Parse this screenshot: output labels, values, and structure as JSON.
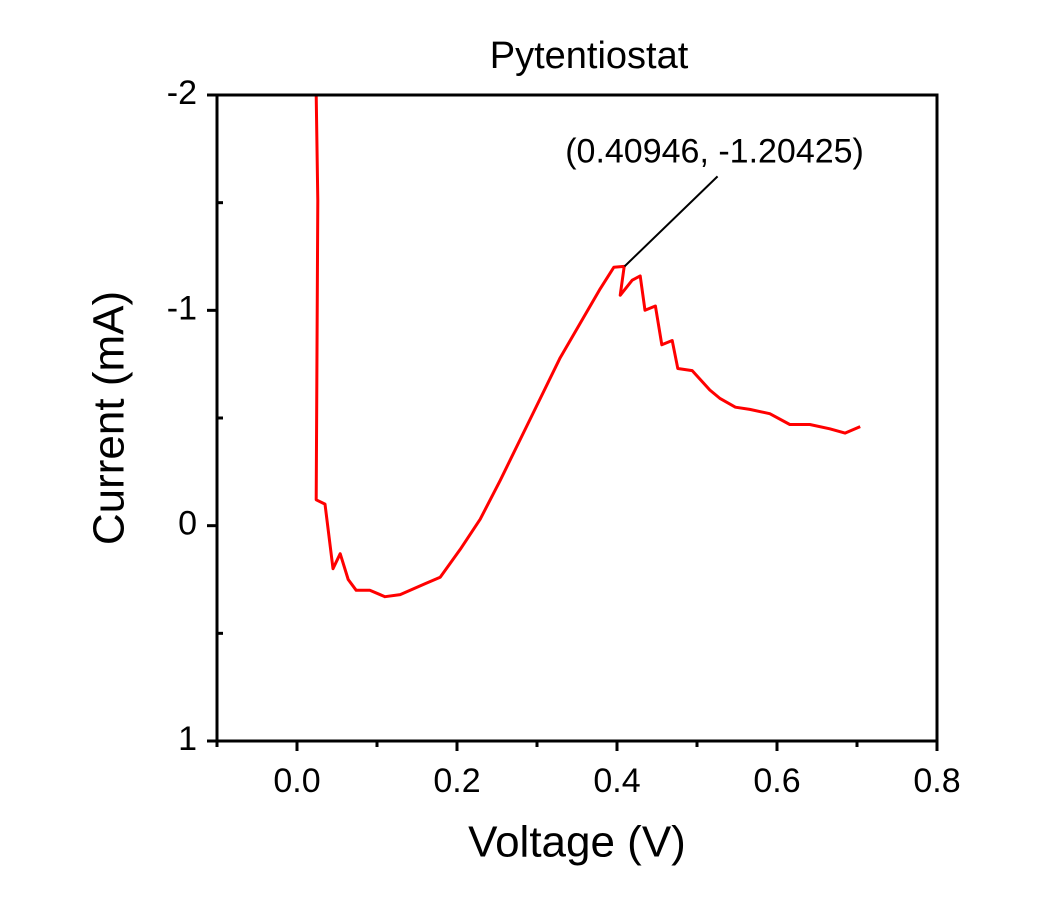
{
  "chart_data": {
    "type": "line",
    "title": "Pytentiostat",
    "x_label": "Voltage (V)",
    "y_label": "Current (mA)",
    "xlim": [
      -0.1,
      0.8
    ],
    "ylim": [
      -2,
      1
    ],
    "y_reversed": true,
    "xticks": [
      {
        "value": 0,
        "label": "0.0"
      },
      0.2,
      0.4,
      0.6,
      0.8
    ],
    "yticks": [
      -2,
      -1,
      0,
      1
    ],
    "xticks_minor": [
      -0.1,
      0.1,
      0.3,
      0.5,
      0.7
    ],
    "yticks_minor": [
      -1.5,
      -0.5,
      0.5
    ],
    "series": [
      {
        "name": "Current",
        "color": "#ff0000",
        "x": [
          0.024,
          0.026,
          0.024,
          0.035,
          0.045,
          0.054,
          0.064,
          0.074,
          0.091,
          0.11,
          0.129,
          0.16,
          0.179,
          0.204,
          0.229,
          0.254,
          0.279,
          0.304,
          0.329,
          0.354,
          0.379,
          0.396,
          0.409,
          0.404,
          0.419,
          0.429,
          0.435,
          0.448,
          0.456,
          0.469,
          0.476,
          0.494,
          0.516,
          0.529,
          0.548,
          0.566,
          0.591,
          0.616,
          0.641,
          0.666,
          0.685,
          0.704
        ],
        "values": [
          -2.0,
          -1.51,
          -0.12,
          -0.1,
          0.2,
          0.13,
          0.25,
          0.3,
          0.3,
          0.33,
          0.32,
          0.27,
          0.24,
          0.11,
          -0.03,
          -0.21,
          -0.4,
          -0.59,
          -0.78,
          -0.94,
          -1.1,
          -1.2,
          -1.204,
          -1.07,
          -1.14,
          -1.16,
          -1.0,
          -1.02,
          -0.84,
          -0.86,
          -0.73,
          -0.72,
          -0.63,
          -0.59,
          -0.55,
          -0.54,
          -0.52,
          -0.47,
          -0.47,
          -0.45,
          -0.43,
          -0.46
        ]
      }
    ],
    "annotations": [
      {
        "text": "(0.40946, -1.20425)",
        "x": 0.40946,
        "y": -1.20425
      }
    ]
  }
}
